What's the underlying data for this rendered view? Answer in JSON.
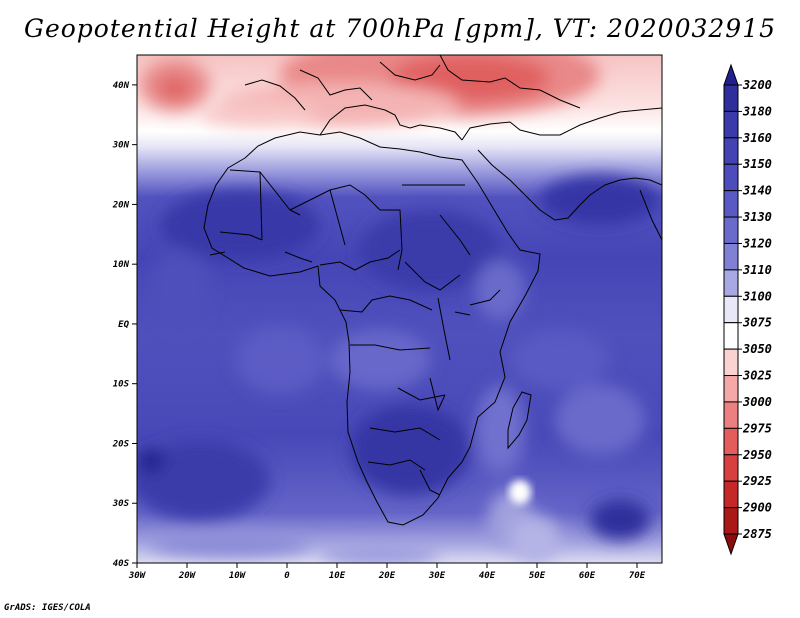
{
  "title": "Geopotential Height at 700hPa [gpm], VT: 2020032915",
  "credit": "GrADS: IGES/COLA",
  "axes": {
    "lat_labels": [
      "40N",
      "30N",
      "20N",
      "10N",
      "EQ",
      "10S",
      "20S",
      "30S",
      "40S"
    ],
    "lat_values": [
      40,
      30,
      20,
      10,
      0,
      -10,
      -20,
      -30,
      -40
    ],
    "lon_labels": [
      "30W",
      "20W",
      "10W",
      "0",
      "10E",
      "20E",
      "30E",
      "40E",
      "50E",
      "60E",
      "70E"
    ],
    "lon_values": [
      -30,
      -20,
      -10,
      0,
      10,
      20,
      30,
      40,
      50,
      60,
      70
    ],
    "lat_range": [
      -40,
      45
    ],
    "lon_range": [
      -30,
      75
    ]
  },
  "colorbar": {
    "levels": [
      "3200",
      "3180",
      "3160",
      "3150",
      "3140",
      "3130",
      "3120",
      "3110",
      "3100",
      "3075",
      "3050",
      "3025",
      "3000",
      "2975",
      "2950",
      "2925",
      "2900",
      "2875"
    ],
    "colors": [
      "#20208e",
      "#2e2e9c",
      "#3a3aaa",
      "#4343b4",
      "#4c4cbd",
      "#5a5ac4",
      "#6a6acb",
      "#8080d4",
      "#a8a8e2",
      "#e8e8f8",
      "#ffffff",
      "#fbd2d2",
      "#f4a8a8",
      "#ec8080",
      "#e45c5c",
      "#d84040",
      "#c62828",
      "#aa1818",
      "#8c0c0c"
    ]
  },
  "colors": {
    "background": "#ffffff",
    "land_outline": "#000000"
  }
}
